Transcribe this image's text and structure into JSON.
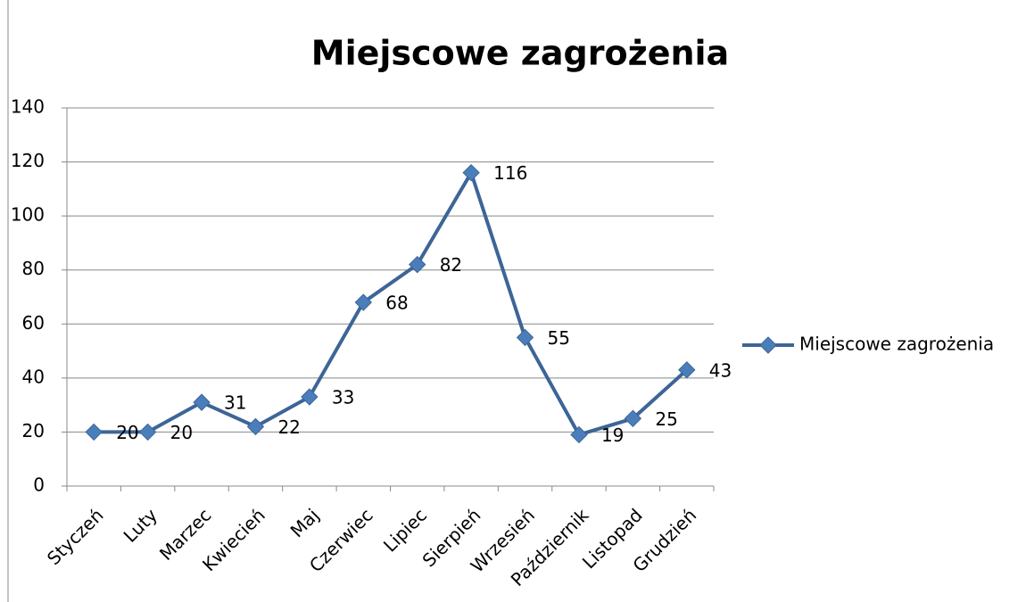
{
  "chart_data": {
    "type": "line",
    "title": "Miejscowe zagrożenia",
    "categories": [
      "Styczeń",
      "Luty",
      "Marzec",
      "Kwiecień",
      "Maj",
      "Czerwiec",
      "Lipiec",
      "Sierpień",
      "Wrzesień",
      "Październik",
      "Listopad",
      "Grudzień"
    ],
    "series": [
      {
        "name": "Miejscowe zagrożenia",
        "color": "#3d6597",
        "marker_color": "#4a7ebb",
        "values": [
          20,
          20,
          31,
          22,
          33,
          68,
          82,
          116,
          55,
          19,
          25,
          43
        ]
      }
    ],
    "ylim": [
      0,
      140
    ],
    "yticks": [
      0,
      20,
      40,
      60,
      80,
      100,
      120,
      140
    ],
    "grid": true,
    "legend": "right"
  }
}
